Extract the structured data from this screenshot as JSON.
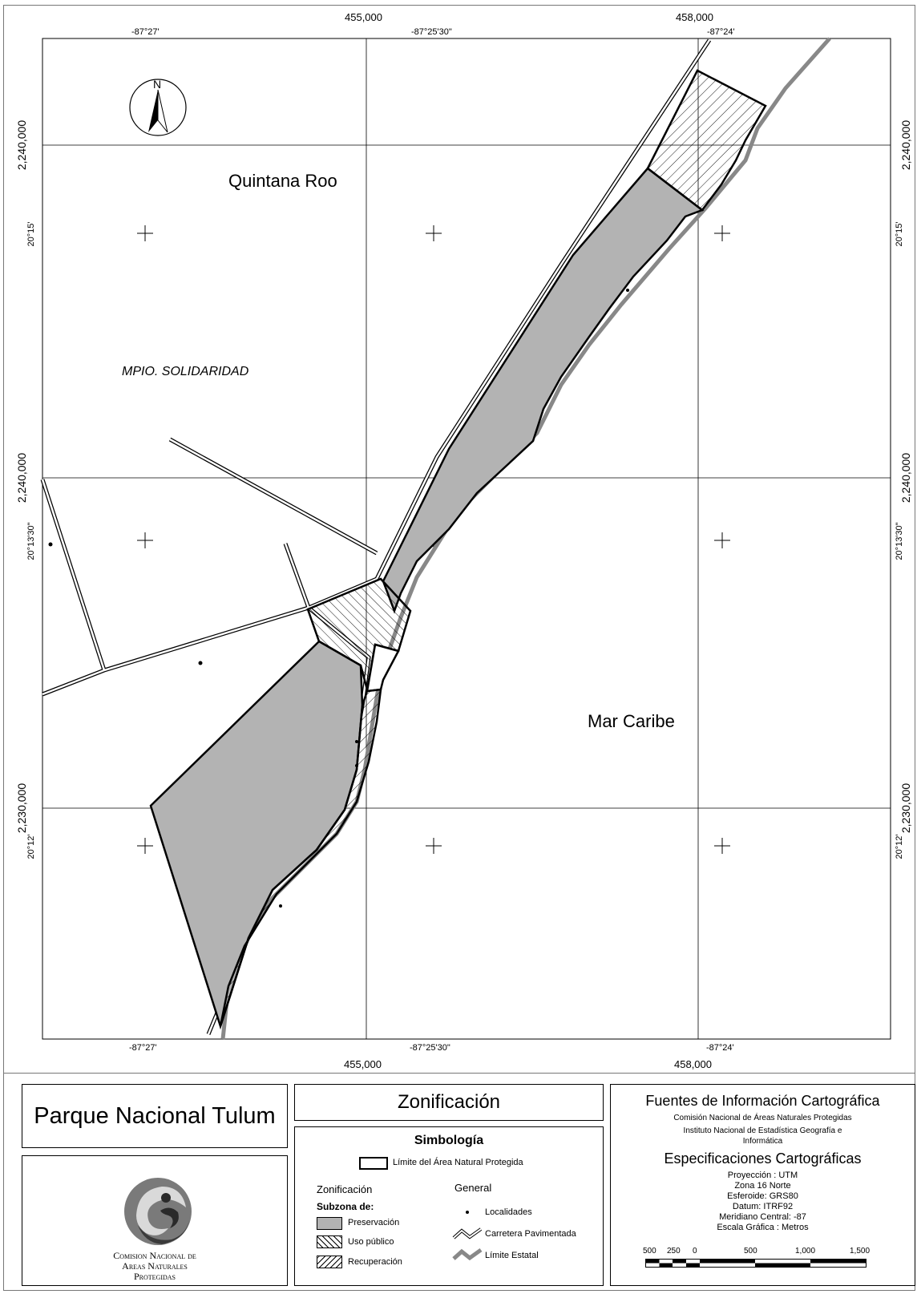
{
  "map": {
    "top_easting": [
      "455,000",
      "458,000"
    ],
    "bottom_easting": [
      "455,000",
      "458,000"
    ],
    "top_longitude": [
      "-87°27'",
      "-87°25'30\"",
      "-87°24'"
    ],
    "bottom_longitude": [
      "-87°27'",
      "-87°25'30\"",
      "-87°24'"
    ],
    "left_northing": [
      "2,240,000",
      "2,240,000",
      "2,230,000"
    ],
    "right_northing": [
      "2,240,000",
      "2,240,000",
      "2,230,000"
    ],
    "left_latitude": [
      "20°15'",
      "20°13'30\"",
      "20°12'"
    ],
    "right_latitude": [
      "20°15'",
      "20°13'30\"",
      "20°12'"
    ],
    "north_label": "N",
    "labels": {
      "state": "Quintana Roo",
      "municipality": "MPIO. SOLIDARIDAD",
      "sea": "Mar Caribe"
    }
  },
  "panel": {
    "park_title": "Parque Nacional Tulum",
    "agency_logo_text": [
      "Comision Nacional de",
      "Areas Naturales",
      "Protegidas"
    ],
    "zoning_title": "Zonificación",
    "legend": {
      "title": "Simbología",
      "boundary_label": "Límite del Área Natural Protegida",
      "zoning_header": "Zonificación",
      "subzone_header": "Subzona de:",
      "subzones": [
        "Preservación",
        "Uso público",
        "Recuperación"
      ],
      "general_header": "General",
      "general_items": [
        "Localidades",
        "Carretera Pavimentada",
        "Límite Estatal"
      ]
    },
    "sources": {
      "title": "Fuentes de Información Cartográfica",
      "lines": [
        "Comisión Nacional de Áreas Naturales Protegidas",
        "Instituto Nacional de Estadística Geografía e",
        "Informática"
      ],
      "spec_title": "Especificaciones Cartográficas",
      "spec_lines": [
        "Proyección : UTM",
        "Zona 16 Norte",
        "Esferoide: GRS80",
        "Datum: ITRF92",
        "Meridiano Central: -87",
        "Escala Gráfica : Metros"
      ],
      "scale_labels": [
        "500",
        "250",
        "0",
        "500",
        "1,000",
        "1,500"
      ]
    }
  }
}
